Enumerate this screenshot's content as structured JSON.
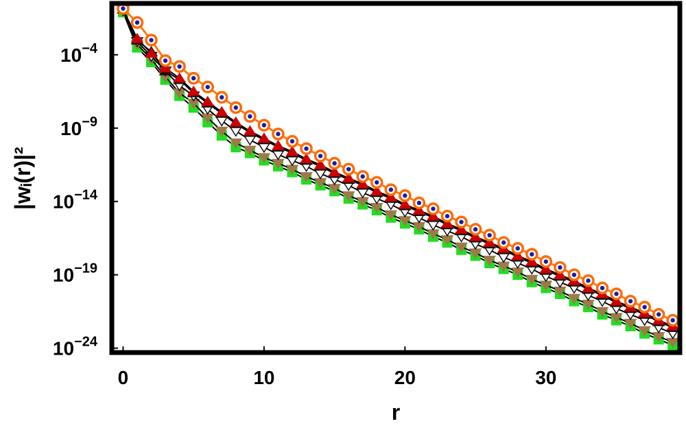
{
  "chart_data": {
    "type": "scatter",
    "title": "",
    "xlabel": "r",
    "ylabel": "|wᵢ(r)|²",
    "ylog": true,
    "xlim": [
      -0.8,
      39.5
    ],
    "ylim_exp": [
      -24.3,
      -0.5
    ],
    "grid": false,
    "legend": "none",
    "x_ticks": [
      {
        "value": 0,
        "label": "0"
      },
      {
        "value": 10,
        "label": "10"
      },
      {
        "value": 20,
        "label": "20"
      },
      {
        "value": 30,
        "label": "30"
      }
    ],
    "y_ticks": [
      {
        "exp": -4,
        "base": "10",
        "sup": "−4"
      },
      {
        "exp": -9,
        "base": "10",
        "sup": "−9"
      },
      {
        "exp": -14,
        "base": "10",
        "sup": "−14"
      },
      {
        "exp": -19,
        "base": "10",
        "sup": "−19"
      },
      {
        "exp": -24,
        "base": "10",
        "sup": "−24"
      }
    ],
    "x": [
      0,
      1,
      2,
      3,
      4,
      5,
      6,
      7,
      8,
      9,
      10,
      11,
      12,
      13,
      14,
      15,
      16,
      17,
      18,
      19,
      20,
      21,
      22,
      23,
      24,
      25,
      26,
      27,
      28,
      29,
      30,
      31,
      32,
      33,
      34,
      35,
      36,
      37,
      38,
      39
    ],
    "series": [
      {
        "marker": "square",
        "color": "#22dd22",
        "edge": "#22dd22",
        "log10_values": [
          -1.1,
          -3.5,
          -4.5,
          -5.7,
          -6.8,
          -7.6,
          -8.6,
          -9.5,
          -10.3,
          -10.7,
          -11.2,
          -11.6,
          -12.0,
          -12.5,
          -12.9,
          -13.3,
          -13.8,
          -14.2,
          -14.6,
          -15.1,
          -15.5,
          -15.9,
          -16.4,
          -16.8,
          -17.3,
          -17.7,
          -18.2,
          -18.6,
          -19.0,
          -19.5,
          -19.9,
          -20.3,
          -20.8,
          -21.2,
          -21.7,
          -22.1,
          -22.5,
          -23.0,
          -23.4,
          -23.8
        ]
      },
      {
        "marker": "triangle-down",
        "color": "#a0784a",
        "edge": "#a0784a",
        "log10_values": [
          -1.0,
          -3.3,
          -4.3,
          -5.5,
          -6.6,
          -7.3,
          -8.3,
          -9.2,
          -10.0,
          -10.5,
          -11.0,
          -11.4,
          -11.8,
          -12.3,
          -12.7,
          -13.1,
          -13.6,
          -14.0,
          -14.4,
          -14.9,
          -15.3,
          -15.7,
          -16.2,
          -16.6,
          -17.1,
          -17.5,
          -18.0,
          -18.4,
          -18.8,
          -19.3,
          -19.7,
          -20.1,
          -20.6,
          -21.0,
          -21.5,
          -21.9,
          -22.3,
          -22.8,
          -23.2,
          -23.6
        ]
      },
      {
        "marker": "triangle-down",
        "color": "#ffffff",
        "edge": "#111111",
        "log10_values": [
          -1.0,
          -3.1,
          -4.1,
          -5.1,
          -6.1,
          -6.8,
          -7.7,
          -8.5,
          -9.2,
          -9.8,
          -10.3,
          -10.8,
          -11.2,
          -11.6,
          -12.1,
          -12.5,
          -12.9,
          -13.4,
          -13.8,
          -14.2,
          -14.7,
          -15.1,
          -15.6,
          -16.0,
          -16.4,
          -16.9,
          -17.3,
          -17.8,
          -18.2,
          -18.6,
          -19.1,
          -19.5,
          -19.9,
          -20.4,
          -20.8,
          -21.3,
          -21.7,
          -22.1,
          -22.6,
          -23.0
        ]
      },
      {
        "marker": "triangle-up",
        "color": "#111111",
        "edge": "#111111",
        "log10_values": [
          -0.9,
          -3.0,
          -3.8,
          -5.1,
          -5.7,
          -6.6,
          -7.3,
          -8.0,
          -8.7,
          -9.3,
          -9.8,
          -10.3,
          -10.7,
          -11.2,
          -11.6,
          -12.1,
          -12.5,
          -12.9,
          -13.4,
          -13.8,
          -14.3,
          -14.7,
          -15.1,
          -15.6,
          -16.0,
          -16.5,
          -16.9,
          -17.3,
          -17.8,
          -18.2,
          -18.7,
          -19.1,
          -19.5,
          -20.0,
          -20.4,
          -20.9,
          -21.3,
          -21.7,
          -22.2,
          -22.6
        ]
      },
      {
        "marker": "triangle-up",
        "color": "#cc0000",
        "edge": "#cc0000",
        "log10_values": [
          -0.9,
          -2.9,
          -3.9,
          -4.9,
          -5.6,
          -6.5,
          -7.2,
          -7.9,
          -8.6,
          -9.2,
          -9.7,
          -10.2,
          -10.6,
          -11.1,
          -11.5,
          -12.0,
          -12.4,
          -12.8,
          -13.3,
          -13.7,
          -14.2,
          -14.6,
          -15.0,
          -15.5,
          -15.9,
          -16.4,
          -16.8,
          -17.2,
          -17.7,
          -18.1,
          -18.6,
          -19.0,
          -19.4,
          -19.9,
          -20.3,
          -20.8,
          -21.2,
          -21.6,
          -22.1,
          -22.5
        ]
      },
      {
        "marker": "circle",
        "color": "#ff8020",
        "edge": "#ff6a00",
        "line": "#ff7a10",
        "log10_values": [
          -0.85,
          -1.8,
          -3.0,
          -4.4,
          -4.8,
          -5.6,
          -6.2,
          -6.9,
          -7.6,
          -8.2,
          -8.8,
          -9.4,
          -9.9,
          -10.4,
          -10.9,
          -11.4,
          -11.8,
          -12.3,
          -12.7,
          -13.2,
          -13.6,
          -14.1,
          -14.5,
          -15.0,
          -15.4,
          -15.9,
          -16.3,
          -16.8,
          -17.2,
          -17.6,
          -18.1,
          -18.5,
          -19.0,
          -19.4,
          -19.9,
          -20.3,
          -20.8,
          -21.2,
          -21.7,
          -22.1
        ]
      }
    ]
  }
}
